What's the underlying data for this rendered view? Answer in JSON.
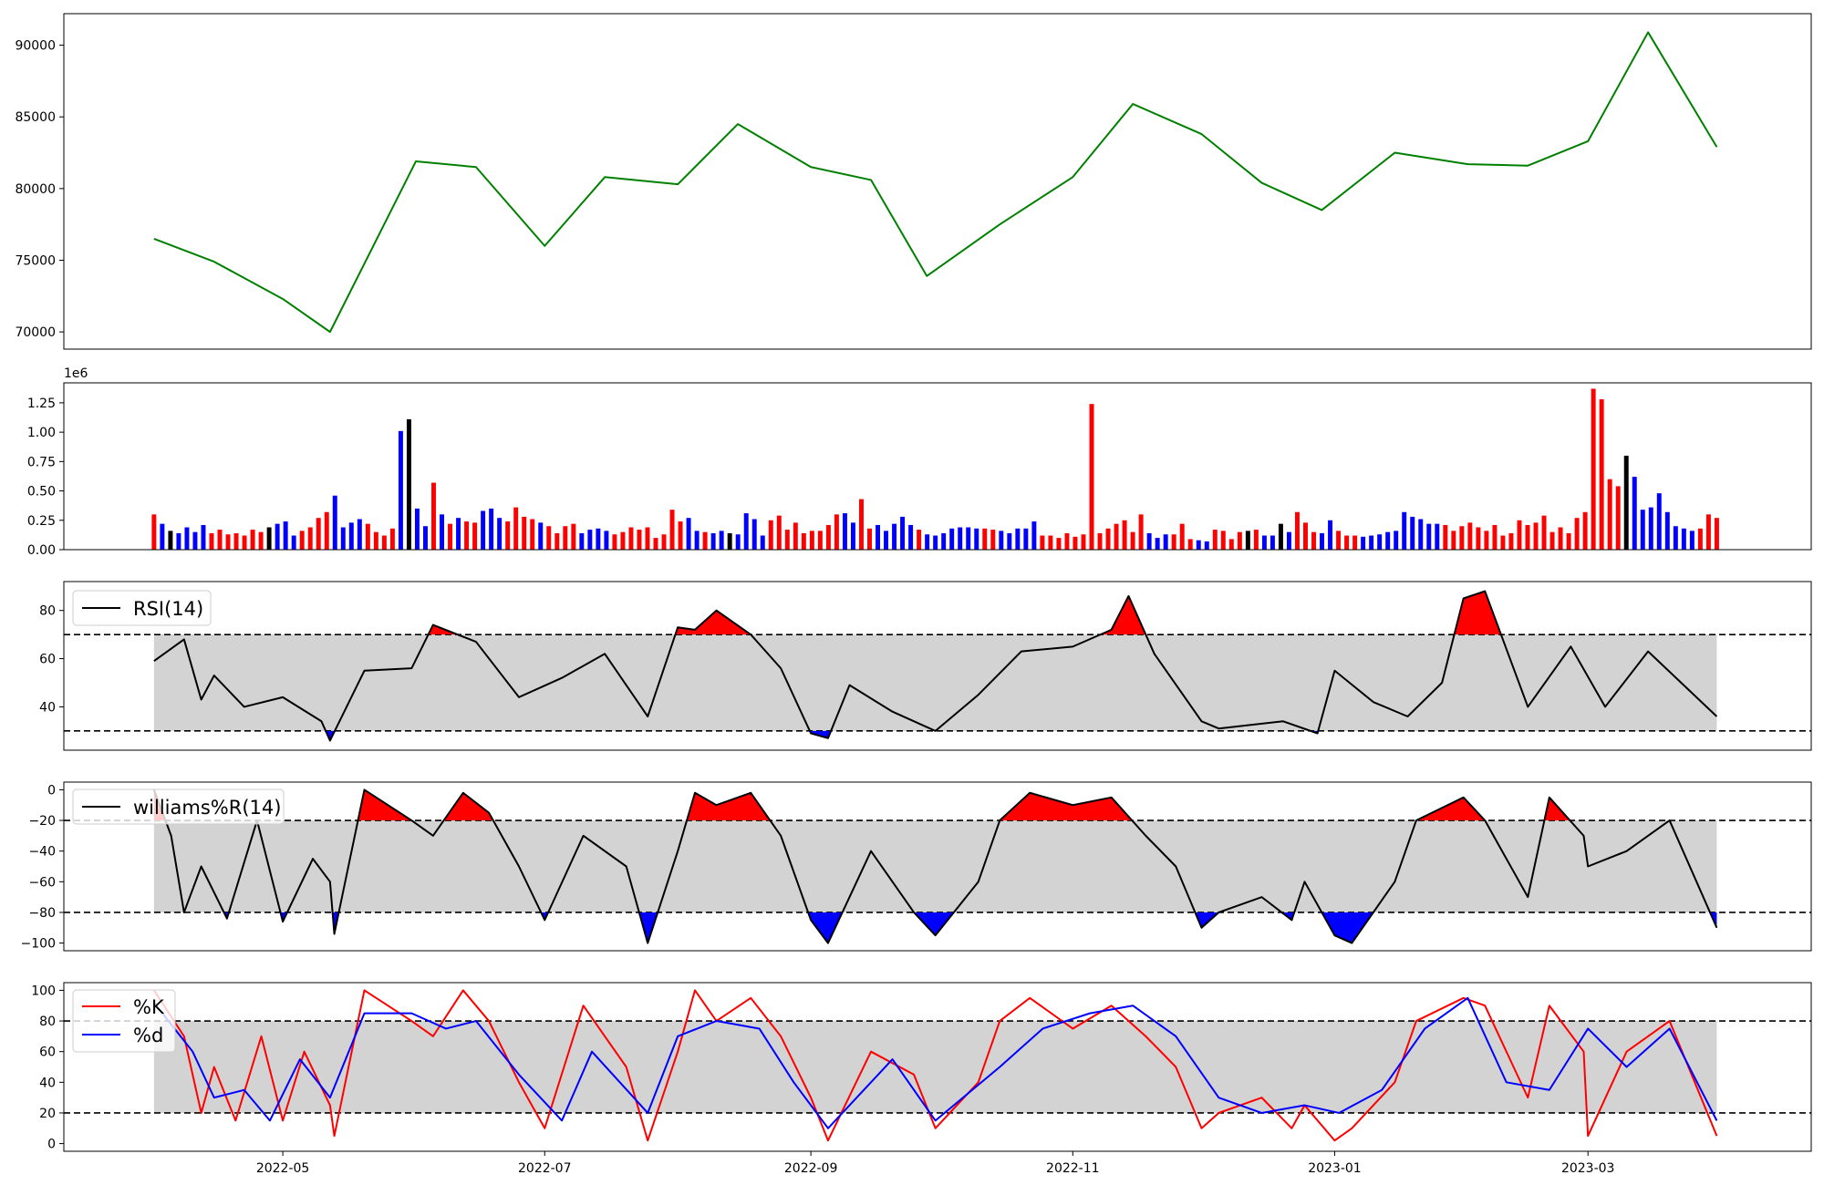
{
  "chart_data": [
    {
      "id": "price",
      "type": "line",
      "color": "#008000",
      "ylim": [
        68800,
        92200
      ],
      "yticks": [
        70000,
        75000,
        80000,
        85000,
        90000
      ],
      "yticklabels": [
        "70000",
        "75000",
        "80000",
        "85000",
        "90000"
      ],
      "x": [
        "2022-04-01",
        "2022-04-15",
        "2022-05-01",
        "2022-05-12",
        "2022-06-01",
        "2022-06-15",
        "2022-07-01",
        "2022-07-15",
        "2022-08-01",
        "2022-08-15",
        "2022-09-01",
        "2022-09-15",
        "2022-09-28",
        "2022-10-15",
        "2022-11-01",
        "2022-11-15",
        "2022-12-01",
        "2022-12-15",
        "2022-12-29",
        "2023-01-15",
        "2023-02-01",
        "2023-02-15",
        "2023-03-01",
        "2023-03-15",
        "2023-03-31"
      ],
      "y": [
        76500,
        74900,
        72300,
        70000,
        81900,
        81500,
        76000,
        80800,
        80300,
        84500,
        81500,
        80600,
        73900,
        77500,
        80800,
        85900,
        83800,
        80400,
        78500,
        82500,
        81700,
        81600,
        83300,
        90900,
        82900
      ]
    },
    {
      "id": "volume",
      "type": "bar",
      "offset_text": "1e6",
      "ylim": [
        0,
        1.42
      ],
      "yticks": [
        0,
        0.25,
        0.5,
        0.75,
        1.0,
        1.25
      ],
      "yticklabels": [
        "0.00",
        "0.25",
        "0.50",
        "0.75",
        "1.00",
        "1.25"
      ],
      "colors": {
        "up": "#ff0000",
        "down": "#0000ff",
        "flat": "#000000"
      },
      "bars": [
        0.3,
        0.22,
        0.16,
        0.14,
        0.19,
        0.15,
        0.21,
        0.14,
        0.17,
        0.13,
        0.14,
        0.12,
        0.17,
        0.15,
        0.19,
        0.22,
        0.24,
        0.12,
        0.16,
        0.19,
        0.27,
        0.32,
        0.46,
        0.19,
        0.23,
        0.26,
        0.22,
        0.15,
        0.12,
        0.18,
        1.01,
        1.11,
        0.35,
        0.2,
        0.57,
        0.3,
        0.22,
        0.27,
        0.24,
        0.23,
        0.33,
        0.35,
        0.27,
        0.24,
        0.36,
        0.28,
        0.26,
        0.23,
        0.2,
        0.14,
        0.2,
        0.22,
        0.14,
        0.17,
        0.18,
        0.16,
        0.13,
        0.15,
        0.19,
        0.17,
        0.19,
        0.1,
        0.13,
        0.34,
        0.24,
        0.27,
        0.16,
        0.15,
        0.14,
        0.16,
        0.14,
        0.13,
        0.31,
        0.26,
        0.12,
        0.25,
        0.29,
        0.17,
        0.23,
        0.14,
        0.16,
        0.16,
        0.21,
        0.3,
        0.31,
        0.23,
        0.43,
        0.18,
        0.21,
        0.16,
        0.22,
        0.28,
        0.21,
        0.17,
        0.13,
        0.12,
        0.14,
        0.18,
        0.19,
        0.19,
        0.18,
        0.18,
        0.17,
        0.16,
        0.14,
        0.18,
        0.18,
        0.24,
        0.12,
        0.12,
        0.1,
        0.14,
        0.11,
        0.13,
        1.24,
        0.14,
        0.18,
        0.22,
        0.25,
        0.15,
        0.3,
        0.14,
        0.1,
        0.13,
        0.13,
        0.22,
        0.09,
        0.08,
        0.07,
        0.17,
        0.16,
        0.09,
        0.15,
        0.16,
        0.17,
        0.12,
        0.12,
        0.22,
        0.15,
        0.32,
        0.23,
        0.15,
        0.14,
        0.25,
        0.16,
        0.12,
        0.12,
        0.11,
        0.12,
        0.13,
        0.15,
        0.16,
        0.32,
        0.28,
        0.26,
        0.22,
        0.22,
        0.21,
        0.16,
        0.2,
        0.23,
        0.19,
        0.16,
        0.21,
        0.12,
        0.14,
        0.25,
        0.21,
        0.23,
        0.29,
        0.15,
        0.19,
        0.14,
        0.27,
        0.32,
        1.37,
        1.28,
        0.6,
        0.54,
        0.8,
        0.62,
        0.34,
        0.36,
        0.48,
        0.32,
        0.2,
        0.18,
        0.16,
        0.18,
        0.3,
        0.27
      ],
      "bar_dirs": "rbkbbbbrrrrrrrkbbbrrrrbbbbrrrrbkbbrbrbrrbbbrrrrbrrrrbbbbrrrrrrrrrbbrbbkbbbbrrrrrrrrrbbrrbbbbbrbbbbbbbrrbbbbbrrrrrrrrrrrrrbbbrrrbbrrrrkrbbkbrrrbbrrrbbbbbbbbbbrrrrrrrrrrrrrrrrrrrrrrkbbbbbbbbrrrrrrrrbbbbbbrbrrrbbbbbrrbbbbrrrrbbbrrrbbrrrrrrrr"
    },
    {
      "id": "rsi",
      "type": "line",
      "legend": "RSI(14)",
      "color": "#000000",
      "ylim": [
        22,
        92
      ],
      "yticks": [
        40,
        60,
        80
      ],
      "yticklabels": [
        "40",
        "60",
        "80"
      ],
      "band": [
        30,
        70
      ],
      "upper_fill": "#ff0000",
      "lower_fill": "#0000ff",
      "band_fill": "#d3d3d3",
      "x": [
        "2022-04-01",
        "2022-04-08",
        "2022-04-12",
        "2022-04-15",
        "2022-04-22",
        "2022-05-01",
        "2022-05-10",
        "2022-05-12",
        "2022-05-20",
        "2022-05-31",
        "2022-06-05",
        "2022-06-15",
        "2022-06-25",
        "2022-07-05",
        "2022-07-15",
        "2022-07-25",
        "2022-08-01",
        "2022-08-05",
        "2022-08-10",
        "2022-08-18",
        "2022-08-25",
        "2022-09-01",
        "2022-09-05",
        "2022-09-10",
        "2022-09-20",
        "2022-09-30",
        "2022-10-10",
        "2022-10-20",
        "2022-11-01",
        "2022-11-10",
        "2022-11-14",
        "2022-11-20",
        "2022-12-01",
        "2022-12-05",
        "2022-12-20",
        "2022-12-28",
        "2023-01-01",
        "2023-01-10",
        "2023-01-18",
        "2023-01-26",
        "2023-01-31",
        "2023-02-05",
        "2023-02-15",
        "2023-02-25",
        "2023-03-05",
        "2023-03-15",
        "2023-03-31"
      ],
      "y": [
        59,
        68,
        43,
        53,
        40,
        44,
        34,
        26,
        55,
        56,
        74,
        67,
        44,
        52,
        62,
        36,
        73,
        72,
        80,
        70,
        56,
        29,
        27,
        49,
        38,
        30,
        45,
        63,
        65,
        72,
        86,
        62,
        34,
        31,
        34,
        29,
        55,
        42,
        36,
        50,
        85,
        88,
        40,
        65,
        40,
        63,
        36
      ]
    },
    {
      "id": "williams",
      "type": "line",
      "legend": "williams%R(14)",
      "color": "#000000",
      "ylim": [
        -105,
        5
      ],
      "yticks": [
        -100,
        -80,
        -60,
        -40,
        -20,
        0
      ],
      "yticklabels": [
        "−100",
        "−80",
        "−60",
        "−40",
        "−20",
        "0"
      ],
      "band": [
        -80,
        -20
      ],
      "upper_fill": "#ff0000",
      "lower_fill": "#0000ff",
      "band_fill": "#d3d3d3",
      "x": [
        "2022-04-01",
        "2022-04-05",
        "2022-04-08",
        "2022-04-12",
        "2022-04-18",
        "2022-04-25",
        "2022-05-01",
        "2022-05-08",
        "2022-05-12",
        "2022-05-13",
        "2022-05-20",
        "2022-05-31",
        "2022-06-05",
        "2022-06-12",
        "2022-06-18",
        "2022-06-25",
        "2022-07-01",
        "2022-07-10",
        "2022-07-20",
        "2022-07-25",
        "2022-08-01",
        "2022-08-05",
        "2022-08-10",
        "2022-08-18",
        "2022-08-25",
        "2022-09-01",
        "2022-09-05",
        "2022-09-15",
        "2022-09-25",
        "2022-09-30",
        "2022-10-10",
        "2022-10-15",
        "2022-10-22",
        "2022-11-01",
        "2022-11-10",
        "2022-11-18",
        "2022-11-25",
        "2022-12-01",
        "2022-12-05",
        "2022-12-15",
        "2022-12-22",
        "2022-12-25",
        "2023-01-01",
        "2023-01-05",
        "2023-01-15",
        "2023-01-20",
        "2023-01-31",
        "2023-02-05",
        "2023-02-15",
        "2023-02-20",
        "2023-02-28",
        "2023-03-01",
        "2023-03-10",
        "2023-03-20",
        "2023-03-31"
      ],
      "y": [
        0,
        -30,
        -80,
        -50,
        -84,
        -20,
        -86,
        -45,
        -60,
        -94,
        0,
        -20,
        -30,
        -2,
        -15,
        -50,
        -85,
        -30,
        -50,
        -100,
        -40,
        -2,
        -10,
        -2,
        -30,
        -85,
        -100,
        -40,
        -80,
        -95,
        -60,
        -20,
        -2,
        -10,
        -5,
        -30,
        -50,
        -90,
        -80,
        -70,
        -85,
        -60,
        -95,
        -100,
        -60,
        -20,
        -5,
        -20,
        -70,
        -5,
        -30,
        -50,
        -40,
        -20,
        -90
      ]
    },
    {
      "id": "stochastic",
      "type": "line",
      "ylim": [
        -5,
        105
      ],
      "yticks": [
        0,
        20,
        40,
        60,
        80,
        100
      ],
      "yticklabels": [
        "0",
        "20",
        "40",
        "60",
        "80",
        "100"
      ],
      "band": [
        20,
        80
      ],
      "band_fill": "#d3d3d3",
      "xticks": [
        "2022-05-01",
        "2022-07-01",
        "2022-09-01",
        "2022-11-01",
        "2023-01-01",
        "2023-03-01"
      ],
      "xticklabels": [
        "2022-05",
        "2022-07",
        "2022-09",
        "2022-11",
        "2023-01",
        "2023-03"
      ],
      "series": [
        {
          "name": "%K",
          "color": "#ff0000",
          "x": [
            "2022-04-01",
            "2022-04-08",
            "2022-04-12",
            "2022-04-15",
            "2022-04-20",
            "2022-04-26",
            "2022-05-01",
            "2022-05-06",
            "2022-05-12",
            "2022-05-13",
            "2022-05-20",
            "2022-05-31",
            "2022-06-05",
            "2022-06-12",
            "2022-06-18",
            "2022-06-25",
            "2022-07-01",
            "2022-07-10",
            "2022-07-20",
            "2022-07-25",
            "2022-08-01",
            "2022-08-05",
            "2022-08-10",
            "2022-08-18",
            "2022-08-25",
            "2022-09-01",
            "2022-09-05",
            "2022-09-15",
            "2022-09-25",
            "2022-09-30",
            "2022-10-10",
            "2022-10-15",
            "2022-10-22",
            "2022-11-01",
            "2022-11-10",
            "2022-11-18",
            "2022-11-25",
            "2022-12-01",
            "2022-12-05",
            "2022-12-15",
            "2022-12-22",
            "2022-12-25",
            "2023-01-01",
            "2023-01-05",
            "2023-01-15",
            "2023-01-20",
            "2023-01-31",
            "2023-02-05",
            "2023-02-15",
            "2023-02-20",
            "2023-02-28",
            "2023-03-01",
            "2023-03-10",
            "2023-03-20",
            "2023-03-31"
          ],
          "y": [
            100,
            70,
            20,
            50,
            15,
            70,
            15,
            60,
            25,
            5,
            100,
            80,
            70,
            100,
            80,
            40,
            10,
            90,
            50,
            2,
            60,
            100,
            80,
            95,
            70,
            30,
            2,
            60,
            45,
            10,
            40,
            80,
            95,
            75,
            90,
            70,
            50,
            10,
            20,
            30,
            10,
            25,
            2,
            10,
            40,
            80,
            95,
            90,
            30,
            90,
            60,
            5,
            60,
            80,
            5
          ]
        },
        {
          "name": "%d",
          "color": "#0000ff",
          "x": [
            "2022-04-01",
            "2022-04-10",
            "2022-04-15",
            "2022-04-22",
            "2022-04-28",
            "2022-05-05",
            "2022-05-12",
            "2022-05-20",
            "2022-05-31",
            "2022-06-08",
            "2022-06-15",
            "2022-06-25",
            "2022-07-05",
            "2022-07-12",
            "2022-07-25",
            "2022-08-01",
            "2022-08-10",
            "2022-08-20",
            "2022-08-28",
            "2022-09-05",
            "2022-09-20",
            "2022-09-30",
            "2022-10-15",
            "2022-10-25",
            "2022-11-05",
            "2022-11-15",
            "2022-11-25",
            "2022-12-05",
            "2022-12-15",
            "2022-12-25",
            "2023-01-02",
            "2023-01-12",
            "2023-01-22",
            "2023-02-01",
            "2023-02-10",
            "2023-02-20",
            "2023-03-01",
            "2023-03-10",
            "2023-03-20",
            "2023-03-31"
          ],
          "y": [
            92,
            60,
            30,
            35,
            15,
            55,
            30,
            85,
            85,
            75,
            80,
            45,
            15,
            60,
            20,
            70,
            80,
            75,
            40,
            10,
            55,
            15,
            50,
            75,
            85,
            90,
            70,
            30,
            20,
            25,
            20,
            35,
            75,
            95,
            40,
            35,
            75,
            50,
            75,
            15
          ]
        }
      ]
    }
  ]
}
